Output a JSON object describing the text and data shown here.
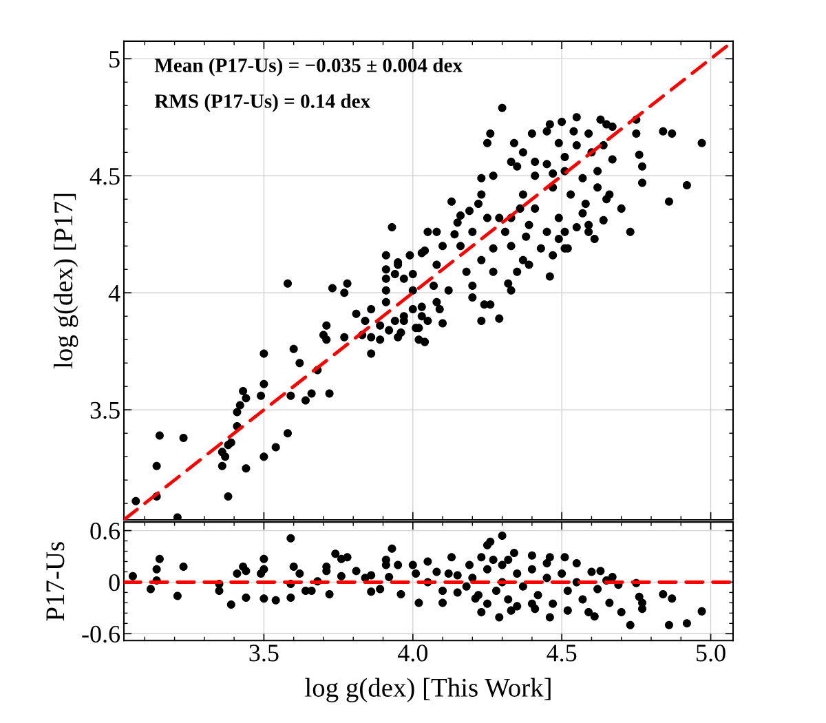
{
  "chart_data": [
    {
      "type": "scatter",
      "ylabel": "log g(dex) [P17]",
      "annotations": [
        "Mean (P17-Us) = −0.035 ± 0.004 dex",
        "RMS (P17-Us) = 0.14 dex"
      ],
      "xlim": [
        3.03,
        5.075
      ],
      "ylim": [
        3.03,
        5.075
      ],
      "yticks": [
        3.5,
        4,
        4.5,
        5
      ],
      "tick_labels": "y",
      "grid": true,
      "marker": "circle",
      "series": [
        {
          "color": "#000000",
          "x": [
            3.07,
            3.14,
            3.14,
            3.15,
            3.21,
            3.23,
            3.36,
            3.37,
            3.36,
            3.38,
            3.39,
            3.38,
            3.41,
            3.41,
            3.42,
            3.43,
            3.44,
            3.44,
            3.49,
            3.5,
            3.5,
            3.5,
            3.54,
            3.58,
            3.58,
            3.59,
            3.6,
            3.62,
            3.64,
            3.66,
            3.68,
            3.7,
            3.71,
            3.71,
            3.72,
            3.73,
            3.77,
            3.77,
            3.78,
            3.81,
            3.83,
            3.84,
            3.86,
            3.86,
            3.86,
            3.89,
            3.89,
            3.91,
            3.91,
            3.91,
            3.91,
            3.91,
            3.92,
            3.95,
            3.94,
            3.95,
            3.96,
            3.97,
            3.97,
            3.99,
            4.0,
            4.0,
            4.01,
            4.02,
            4.04,
            4.03,
            4.04,
            4.05,
            4.08,
            4.1,
            4.09,
            4.3,
            4.26,
            4.25,
            4.13,
            3.93,
            4.05,
            4.08,
            4.34,
            4.55,
            4.63,
            4.65,
            4.67,
            4.75,
            4.75,
            4.84,
            4.87,
            4.97,
            4.76,
            4.77,
            4.77,
            4.92,
            4.86,
            4.7,
            4.64,
            4.73,
            4.61,
            4.46,
            4.29,
            4.23,
            4.26,
            4.24,
            4.33,
            4.52,
            4.59,
            4.59,
            4.66,
            4.65,
            4.4,
            4.46,
            4.5,
            4.37,
            4.33,
            4.35,
            4.23,
            4.27,
            4.23,
            4.22,
            4.19,
            4.16,
            4.15,
            4.14,
            4.1,
            4.08,
            4.07,
            4.03,
            3.95,
            4.0,
            3.97,
            3.94,
            4.03,
            4.02,
            4.12,
            4.2,
            4.18,
            4.23,
            4.27,
            4.2,
            4.32,
            4.35,
            4.27,
            4.33,
            4.37,
            4.39,
            4.31,
            4.29,
            4.25,
            4.2,
            4.16,
            4.33,
            4.37,
            4.41,
            4.45,
            4.43,
            4.49,
            4.51,
            4.55,
            4.57,
            4.53,
            4.47,
            4.41,
            4.45,
            4.51,
            4.57,
            4.62,
            4.6,
            4.55,
            4.49,
            4.54,
            4.59,
            4.64,
            4.67,
            4.62,
            4.58,
            4.49,
            4.47,
            4.39,
            4.36,
            4.41,
            4.45,
            4.51,
            4.38,
            4.47,
            4.51
          ],
          "values": [
            3.11,
            3.26,
            3.13,
            3.39,
            3.04,
            3.38,
            3.32,
            3.3,
            3.26,
            3.35,
            3.36,
            3.13,
            3.43,
            3.49,
            3.52,
            3.58,
            3.55,
            3.25,
            3.56,
            3.61,
            3.3,
            3.74,
            3.34,
            4.04,
            3.4,
            3.56,
            3.76,
            3.7,
            3.54,
            3.57,
            3.67,
            3.82,
            3.86,
            3.8,
            3.57,
            4.02,
            3.81,
            4.0,
            4.04,
            3.91,
            3.82,
            3.88,
            3.93,
            3.81,
            3.74,
            3.86,
            3.8,
            4.16,
            4.1,
            4.06,
            4.01,
            3.96,
            3.84,
            4.12,
            4.08,
            3.81,
            3.83,
            4.06,
            3.88,
            4.16,
            4.08,
            4.01,
            3.85,
            3.8,
            3.79,
            3.94,
            4.18,
            3.88,
            3.96,
            3.87,
            3.93,
            4.79,
            4.68,
            4.64,
            4.39,
            4.28,
            4.26,
            4.26,
            4.64,
            4.75,
            4.74,
            4.72,
            4.71,
            4.74,
            4.68,
            4.69,
            4.68,
            4.64,
            4.59,
            4.54,
            4.47,
            4.46,
            4.39,
            4.36,
            4.31,
            4.26,
            4.23,
            4.07,
            3.89,
            3.88,
            3.95,
            3.95,
            4.01,
            4.19,
            4.29,
            4.26,
            4.42,
            4.4,
            4.68,
            4.72,
            4.73,
            4.6,
            4.56,
            4.54,
            4.49,
            4.5,
            4.42,
            4.38,
            4.35,
            4.33,
            4.3,
            4.25,
            4.2,
            4.12,
            4.03,
            4.17,
            4.13,
            3.93,
            3.9,
            3.88,
            3.9,
            3.85,
            4.01,
            3.98,
            4.09,
            4.14,
            4.09,
            4.03,
            4.04,
            4.09,
            4.19,
            4.2,
            4.14,
            4.12,
            4.26,
            4.32,
            4.32,
            4.26,
            4.2,
            4.32,
            4.42,
            4.36,
            4.26,
            4.19,
            4.23,
            4.26,
            4.28,
            4.34,
            4.42,
            4.45,
            4.5,
            4.55,
            4.52,
            4.49,
            4.52,
            4.6,
            4.63,
            4.64,
            4.69,
            4.68,
            4.63,
            4.57,
            4.45,
            4.38,
            4.32,
            4.51,
            4.29,
            4.36,
            4.56,
            4.69,
            4.58,
            4.24,
            4.16,
            4.19
          ]
        },
        {
          "type": "line",
          "color": "#ff0000",
          "line_style": "dashed",
          "marker": "none",
          "x": [
            3.03,
            5.075
          ],
          "values": [
            3.03,
            5.075
          ]
        }
      ]
    },
    {
      "type": "scatter",
      "xlabel": "log g(dex) [This Work]",
      "ylabel": "P17-Us",
      "xlim": [
        3.03,
        5.075
      ],
      "ylim": [
        -0.68,
        0.7
      ],
      "xticks": [
        {
          "value": 3.5,
          "label": "3.5"
        },
        {
          "value": 4.0,
          "label": "4.0"
        },
        {
          "value": 4.5,
          "label": "4.5"
        },
        {
          "value": 5.0,
          "label": "5.0"
        }
      ],
      "yticks": [
        {
          "value": 0.6,
          "label": "0.6"
        },
        {
          "value": 0,
          "label": "0"
        },
        {
          "value": -0.6,
          "label": "-0.6"
        }
      ],
      "grid": true,
      "marker": "circle",
      "ref_lines": [
        {
          "axis": "y",
          "value": 0,
          "color": "#ff0000",
          "line_style": "dashed"
        }
      ],
      "series": [
        {
          "color": "#000000",
          "x": [
            3.06,
            3.12,
            3.14,
            3.15,
            3.14,
            3.21,
            3.23,
            3.35,
            3.35,
            3.39,
            3.41,
            3.43,
            3.44,
            3.44,
            3.49,
            3.5,
            3.5,
            3.5,
            3.54,
            3.59,
            3.6,
            3.62,
            3.59,
            3.59,
            3.64,
            3.66,
            3.68,
            3.71,
            3.71,
            3.74,
            3.76,
            3.78,
            3.76,
            3.72,
            3.81,
            3.84,
            3.86,
            3.86,
            3.91,
            3.91,
            3.93,
            3.92,
            3.89,
            3.95,
            3.96,
            4.0,
            4.01,
            4.02,
            4.05,
            4.1,
            4.13,
            4.15,
            4.19,
            4.21,
            4.23,
            4.23,
            4.25,
            4.26,
            4.3,
            4.27,
            4.29,
            4.33,
            4.32,
            4.34,
            4.4,
            4.41,
            4.46,
            4.46,
            4.51,
            4.52,
            4.55,
            4.59,
            4.61,
            4.63,
            4.66,
            4.67,
            4.69,
            4.7,
            4.73,
            4.75,
            4.76,
            4.77,
            4.77,
            4.84,
            4.86,
            4.87,
            4.92,
            4.97,
            4.05,
            4.1,
            4.12,
            4.18,
            4.2,
            4.22,
            4.25,
            4.28,
            4.3,
            4.32,
            4.35,
            4.37,
            4.4,
            4.42,
            4.45,
            4.47,
            4.5,
            4.52,
            4.55,
            4.57,
            4.6,
            4.62,
            4.65,
            4.4,
            4.35,
            4.45,
            4.3,
            4.25,
            4.15,
            4.08
          ],
          "values": [
            0.07,
            -0.08,
            0.15,
            0.27,
            0.02,
            -0.16,
            0.18,
            -0.02,
            -0.1,
            -0.26,
            0.1,
            0.18,
            0.13,
            -0.18,
            0.1,
            0.15,
            0.27,
            -0.19,
            -0.21,
            0.51,
            0.18,
            0.1,
            -0.18,
            -0.02,
            -0.1,
            -0.1,
            0.01,
            0.18,
            0.13,
            0.33,
            0.27,
            0.29,
            0.07,
            -0.14,
            0.13,
            0.05,
            0.08,
            -0.11,
            0.26,
            0.2,
            0.39,
            0.06,
            -0.08,
            0.2,
            -0.14,
            0.2,
            0.1,
            -0.24,
            0.24,
            -0.24,
            0.29,
            0.08,
            0.2,
            -0.19,
            -0.35,
            0.29,
            0.43,
            0.47,
            0.54,
            0.26,
            -0.41,
            -0.33,
            0.26,
            0.34,
            0.31,
            -0.31,
            0.29,
            -0.41,
            0.29,
            -0.33,
            0.22,
            -0.35,
            -0.4,
            0.13,
            -0.24,
            0.06,
            -0.03,
            -0.35,
            -0.5,
            -0.01,
            -0.17,
            -0.24,
            -0.31,
            -0.14,
            -0.5,
            -0.19,
            -0.48,
            -0.34,
            0.0,
            -0.1,
            0.1,
            -0.05,
            0.05,
            -0.15,
            0.15,
            -0.1,
            0.0,
            -0.2,
            0.1,
            -0.05,
            0.15,
            -0.15,
            0.05,
            -0.25,
            0.1,
            -0.1,
            0.0,
            -0.2,
            0.12,
            -0.08,
            0.02,
            -0.25,
            -0.28,
            0.22,
            0.2,
            -0.25,
            -0.12,
            0.12
          ]
        }
      ]
    }
  ]
}
